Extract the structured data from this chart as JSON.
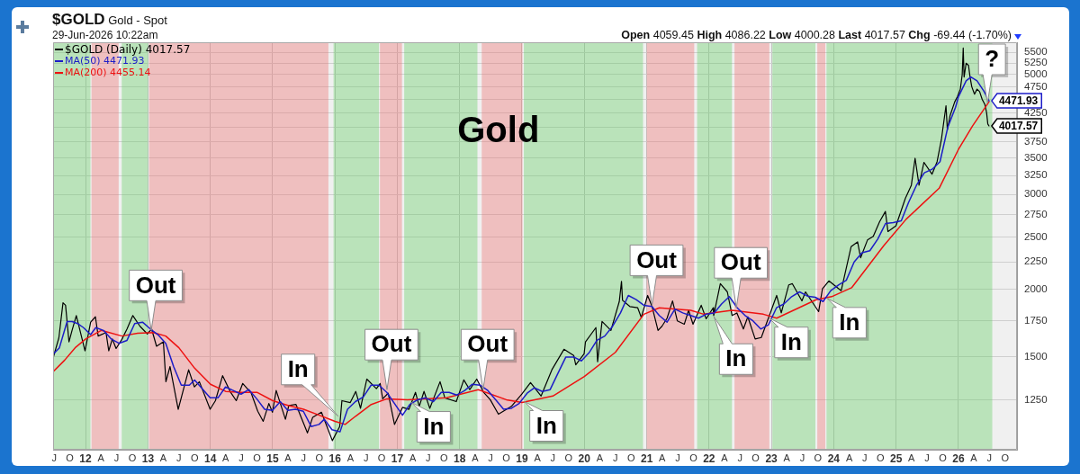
{
  "chart_data": {
    "type": "line",
    "title": "Gold",
    "subtitle": "$GOLD Gold - Spot",
    "annotations": [
      "29-Jun-2026 10:22am",
      "Open 4059.45 High 4086.22 Low 4000.28 Last 4017.57 Chg -69.44 (-1.70%)",
      {
        "text": "Out",
        "x": "2013-01-20",
        "y": 1680
      },
      {
        "text": "In",
        "x": "2016-01-20",
        "y": 1165
      },
      {
        "text": "Out",
        "x": "2016-11-01",
        "y": 1305
      },
      {
        "text": "In",
        "x": "2017-03-25",
        "y": 1235
      },
      {
        "text": "Out",
        "x": "2018-05-18",
        "y": 1305
      },
      {
        "text": "In",
        "x": "2019-01-15",
        "y": 1240
      },
      {
        "text": "Out",
        "x": "2021-02-01",
        "y": 1870
      },
      {
        "text": "In",
        "x": "2022-01-30",
        "y": 1780
      },
      {
        "text": "Out",
        "x": "2022-06-10",
        "y": 1850
      },
      {
        "text": "In",
        "x": "2022-12-20",
        "y": 1770
      },
      {
        "text": "In",
        "x": "2023-11-25",
        "y": 1925
      },
      {
        "text": "?",
        "x": "2026-06-20",
        "y": 4430
      }
    ],
    "xlim": [
      "2011-06-25",
      "2026-12-10"
    ],
    "xticks": [
      {
        "value": "2011-07-01",
        "label": "J"
      },
      {
        "value": "2011-10-01",
        "label": "O"
      },
      {
        "value": "2012-01-01",
        "label": "12"
      },
      {
        "value": "2012-04-01",
        "label": "A"
      },
      {
        "value": "2012-07-01",
        "label": "J"
      },
      {
        "value": "2012-10-01",
        "label": "O"
      },
      {
        "value": "2013-01-01",
        "label": "13"
      },
      {
        "value": "2013-04-01",
        "label": "A"
      },
      {
        "value": "2013-07-01",
        "label": "J"
      },
      {
        "value": "2013-10-01",
        "label": "O"
      },
      {
        "value": "2014-01-01",
        "label": "14"
      },
      {
        "value": "2014-04-01",
        "label": "A"
      },
      {
        "value": "2014-07-01",
        "label": "J"
      },
      {
        "value": "2014-10-01",
        "label": "O"
      },
      {
        "value": "2015-01-01",
        "label": "15"
      },
      {
        "value": "2015-04-01",
        "label": "A"
      },
      {
        "value": "2015-07-01",
        "label": "J"
      },
      {
        "value": "2015-10-01",
        "label": "O"
      },
      {
        "value": "2016-01-01",
        "label": "16"
      },
      {
        "value": "2016-04-01",
        "label": "A"
      },
      {
        "value": "2016-07-01",
        "label": "J"
      },
      {
        "value": "2016-10-01",
        "label": "O"
      },
      {
        "value": "2017-01-01",
        "label": "17"
      },
      {
        "value": "2017-04-01",
        "label": "A"
      },
      {
        "value": "2017-07-01",
        "label": "J"
      },
      {
        "value": "2017-10-01",
        "label": "O"
      },
      {
        "value": "2018-01-01",
        "label": "18"
      },
      {
        "value": "2018-04-01",
        "label": "A"
      },
      {
        "value": "2018-07-01",
        "label": "J"
      },
      {
        "value": "2018-10-01",
        "label": "O"
      },
      {
        "value": "2019-01-01",
        "label": "19"
      },
      {
        "value": "2019-04-01",
        "label": "A"
      },
      {
        "value": "2019-07-01",
        "label": "J"
      },
      {
        "value": "2019-10-01",
        "label": "O"
      },
      {
        "value": "2020-01-01",
        "label": "20"
      },
      {
        "value": "2020-04-01",
        "label": "A"
      },
      {
        "value": "2020-07-01",
        "label": "J"
      },
      {
        "value": "2020-10-01",
        "label": "O"
      },
      {
        "value": "2021-01-01",
        "label": "21"
      },
      {
        "value": "2021-04-01",
        "label": "A"
      },
      {
        "value": "2021-07-01",
        "label": "J"
      },
      {
        "value": "2021-10-01",
        "label": "O"
      },
      {
        "value": "2022-01-01",
        "label": "22"
      },
      {
        "value": "2022-04-01",
        "label": "A"
      },
      {
        "value": "2022-07-01",
        "label": "J"
      },
      {
        "value": "2022-10-01",
        "label": "O"
      },
      {
        "value": "2023-01-01",
        "label": "23"
      },
      {
        "value": "2023-04-01",
        "label": "A"
      },
      {
        "value": "2023-07-01",
        "label": "J"
      },
      {
        "value": "2023-10-01",
        "label": "O"
      },
      {
        "value": "2024-01-01",
        "label": "24"
      },
      {
        "value": "2024-04-01",
        "label": "A"
      },
      {
        "value": "2024-07-01",
        "label": "J"
      },
      {
        "value": "2024-10-01",
        "label": "O"
      },
      {
        "value": "2025-01-01",
        "label": "25"
      },
      {
        "value": "2025-04-01",
        "label": "A"
      },
      {
        "value": "2025-07-01",
        "label": "J"
      },
      {
        "value": "2025-10-01",
        "label": "O"
      },
      {
        "value": "2026-01-01",
        "label": "26"
      },
      {
        "value": "2026-04-01",
        "label": "A"
      },
      {
        "value": "2026-07-01",
        "label": "J"
      },
      {
        "value": "2026-10-01",
        "label": "O"
      }
    ],
    "ylim": [
      1010,
      5740
    ],
    "yticks": [
      1250,
      1500,
      1750,
      2000,
      2250,
      2500,
      2750,
      3000,
      3250,
      3500,
      3750,
      {
        "value": 4000,
        "label": null
      },
      4250,
      {
        "value": 4500,
        "label": null
      },
      4750,
      5000,
      5250,
      5500
    ],
    "log": true,
    "grid": true,
    "legend": "top left",
    "bands": [
      {
        "axis": "x",
        "from": "2011-06-25",
        "to": "2012-01-30",
        "color": "#5ccc5c"
      },
      {
        "axis": "x",
        "from": "2012-02-05",
        "to": "2012-07-13",
        "color": "#ee6a6a"
      },
      {
        "axis": "x",
        "from": "2012-07-31",
        "to": "2013-01-01",
        "color": "#5ccc5c"
      },
      {
        "axis": "x",
        "from": "2013-01-08",
        "to": "2015-11-24",
        "color": "#ee6a6a"
      },
      {
        "axis": "x",
        "from": "2015-12-24",
        "to": "2016-09-15",
        "color": "#5ccc5c"
      },
      {
        "axis": "x",
        "from": "2016-09-21",
        "to": "2017-01-28",
        "color": "#ee6a6a"
      },
      {
        "axis": "x",
        "from": "2017-02-10",
        "to": "2018-04-15",
        "color": "#5ccc5c"
      },
      {
        "axis": "x",
        "from": "2018-05-10",
        "to": "2019-01-04",
        "color": "#ee6a6a"
      },
      {
        "axis": "x",
        "from": "2019-01-12",
        "to": "2020-12-10",
        "color": "#5ccc5c"
      },
      {
        "axis": "x",
        "from": "2021-01-01",
        "to": "2021-10-06",
        "color": "#ee6a6a"
      },
      {
        "axis": "x",
        "from": "2021-10-23",
        "to": "2022-05-15",
        "color": "#5ccc5c"
      },
      {
        "axis": "x",
        "from": "2022-05-30",
        "to": "2022-12-20",
        "color": "#ee6a6a"
      },
      {
        "axis": "x",
        "from": "2023-01-07",
        "to": "2023-09-16",
        "color": "#5ccc5c"
      },
      {
        "axis": "x",
        "from": "2023-09-27",
        "to": "2023-11-13",
        "color": "#ee6a6a"
      },
      {
        "axis": "x",
        "from": "2023-11-20",
        "to": "2026-07-18",
        "color": "#5ccc5c"
      }
    ],
    "series": [
      {
        "name": "$GOLD (Daily) 4017.57",
        "color": "#000000",
        "x": [
          "2011-06-27",
          "2011-07-29",
          "2011-08-22",
          "2011-09-06",
          "2011-09-26",
          "2011-10-14",
          "2011-11-08",
          "2011-12-29",
          "2012-01-31",
          "2012-02-28",
          "2012-03-15",
          "2012-04-30",
          "2012-05-16",
          "2012-06-06",
          "2012-06-28",
          "2012-07-31",
          "2012-08-31",
          "2012-10-04",
          "2012-11-15",
          "2012-12-28",
          "2013-01-22",
          "2013-02-20",
          "2013-04-01",
          "2013-04-16",
          "2013-05-10",
          "2013-06-27",
          "2013-08-27",
          "2013-09-30",
          "2013-10-29",
          "2013-12-31",
          "2014-01-31",
          "2014-03-14",
          "2014-04-30",
          "2014-06-02",
          "2014-07-10",
          "2014-08-29",
          "2014-10-06",
          "2014-11-07",
          "2014-12-10",
          "2014-12-31",
          "2015-01-22",
          "2015-03-17",
          "2015-04-06",
          "2015-05-18",
          "2015-07-24",
          "2015-08-24",
          "2015-10-14",
          "2015-12-17",
          "2016-01-29",
          "2016-02-11",
          "2016-03-31",
          "2016-05-02",
          "2016-05-30",
          "2016-07-06",
          "2016-08-31",
          "2016-09-22",
          "2016-10-07",
          "2016-11-08",
          "2016-12-15",
          "2017-01-31",
          "2017-03-10",
          "2017-04-17",
          "2017-05-09",
          "2017-06-06",
          "2017-07-10",
          "2017-09-08",
          "2017-10-06",
          "2017-12-12",
          "2018-01-25",
          "2018-03-01",
          "2018-04-11",
          "2018-05-21",
          "2018-06-29",
          "2018-08-16",
          "2018-10-31",
          "2018-12-31",
          "2019-02-20",
          "2019-04-23",
          "2019-06-25",
          "2019-09-04",
          "2019-10-31",
          "2019-11-12",
          "2019-12-31",
          "2020-01-08",
          "2020-03-09",
          "2020-03-19",
          "2020-04-14",
          "2020-06-05",
          "2020-07-24",
          "2020-08-06",
          "2020-08-12",
          "2020-09-24",
          "2020-11-09",
          "2020-11-30",
          "2021-01-06",
          "2021-02-01",
          "2021-03-08",
          "2021-03-31",
          "2021-04-30",
          "2021-06-01",
          "2021-06-29",
          "2021-08-09",
          "2021-09-03",
          "2021-09-29",
          "2021-11-16",
          "2021-12-15",
          "2022-01-25",
          "2022-01-28",
          "2022-03-08",
          "2022-04-18",
          "2022-05-16",
          "2022-06-13",
          "2022-07-21",
          "2022-08-16",
          "2022-09-28",
          "2022-11-03",
          "2022-12-30",
          "2023-02-01",
          "2023-02-28",
          "2023-04-13",
          "2023-05-04",
          "2023-06-29",
          "2023-07-20",
          "2023-10-05",
          "2023-10-27",
          "2023-12-04",
          "2024-02-14",
          "2024-04-12",
          "2024-05-20",
          "2024-06-07",
          "2024-07-17",
          "2024-08-20",
          "2024-09-26",
          "2024-10-30",
          "2024-11-14",
          "2024-12-31",
          "2025-02-24",
          "2025-03-31",
          "2025-04-22",
          "2025-05-15",
          "2025-06-13",
          "2025-07-30",
          "2025-08-29",
          "2025-09-23",
          "2025-10-20",
          "2025-10-28",
          "2025-11-13",
          "2025-12-10",
          "2025-12-26",
          "2026-01-12",
          "2026-01-23",
          "2026-01-29",
          "2026-02-03",
          "2026-02-15",
          "2026-03-01",
          "2026-03-10",
          "2026-03-20",
          "2026-04-05",
          "2026-04-20",
          "2026-05-05",
          "2026-05-20",
          "2026-06-05",
          "2026-06-15",
          "2026-06-22",
          "2026-06-29"
        ],
        "values": [
          1500,
          1628,
          1890,
          1870,
          1600,
          1680,
          1790,
          1540,
          1740,
          1780,
          1640,
          1665,
          1540,
          1620,
          1555,
          1615,
          1690,
          1790,
          1710,
          1655,
          1690,
          1570,
          1600,
          1350,
          1440,
          1200,
          1420,
          1320,
          1350,
          1200,
          1245,
          1385,
          1290,
          1245,
          1340,
          1285,
          1190,
          1140,
          1230,
          1185,
          1300,
          1150,
          1220,
          1225,
          1085,
          1160,
          1185,
          1050,
          1115,
          1245,
          1235,
          1295,
          1205,
          1365,
          1310,
          1340,
          1255,
          1285,
          1125,
          1210,
          1200,
          1290,
          1215,
          1295,
          1205,
          1350,
          1260,
          1240,
          1360,
          1305,
          1365,
          1290,
          1250,
          1175,
          1215,
          1280,
          1345,
          1270,
          1420,
          1550,
          1510,
          1450,
          1520,
          1600,
          1700,
          1470,
          1745,
          1680,
          1900,
          2070,
          1910,
          1860,
          1850,
          1775,
          1950,
          1860,
          1680,
          1710,
          1770,
          1905,
          1750,
          1725,
          1830,
          1725,
          1870,
          1765,
          1850,
          1790,
          2050,
          1980,
          1790,
          1810,
          1690,
          1780,
          1620,
          1630,
          1825,
          1950,
          1810,
          2040,
          2050,
          1905,
          1980,
          1820,
          2005,
          2075,
          1990,
          2400,
          2450,
          2290,
          2470,
          2510,
          2670,
          2790,
          2560,
          2625,
          2950,
          3120,
          3500,
          3120,
          3440,
          3270,
          3450,
          3790,
          4380,
          3950,
          4200,
          4450,
          4550,
          4700,
          5000,
          5600,
          4950,
          5250,
          5200,
          4950,
          4750,
          4600,
          4700,
          4650,
          4500,
          4400,
          4250,
          4050,
          4017.57
        ],
        "value_labels": [
          null,
          null,
          null,
          null,
          null,
          null,
          null,
          null,
          null,
          null,
          null,
          null,
          null,
          null,
          null,
          null,
          null,
          null,
          null,
          null,
          null,
          null,
          null,
          null,
          null,
          null,
          null,
          null,
          null,
          null,
          null,
          null,
          null,
          null,
          null,
          null,
          null,
          null,
          null,
          null,
          null,
          null,
          null,
          null,
          null,
          null,
          null,
          null,
          null,
          null,
          null,
          null,
          null,
          null,
          null,
          null,
          null,
          null,
          null,
          null,
          null,
          null,
          null,
          null,
          null,
          null,
          null,
          null,
          null,
          null,
          null,
          null,
          null,
          null,
          null,
          null,
          null,
          null,
          null,
          null,
          null,
          null,
          null,
          null,
          null,
          null,
          null,
          null,
          null,
          null,
          null,
          null,
          null,
          null,
          null,
          null,
          null,
          null,
          null,
          null,
          null,
          null,
          null,
          null,
          null,
          null,
          null,
          null,
          null,
          null,
          null,
          null,
          null,
          null,
          null,
          null,
          null,
          null,
          null,
          null,
          null,
          null,
          null,
          null,
          null,
          null,
          null,
          null,
          null,
          null,
          null,
          null,
          null,
          null,
          null,
          null,
          null,
          null,
          null,
          null,
          null,
          null,
          null,
          null,
          null,
          null,
          null,
          null,
          null,
          null,
          null,
          null,
          null,
          null,
          null,
          null,
          null,
          null,
          null,
          null,
          null,
          null,
          null,
          null,
          "4017.57"
        ]
      },
      {
        "name": "MA(50) 4471.93",
        "color": "#1c1cc8",
        "x": [
          "2011-06-27",
          "2011-08-01",
          "2011-09-15",
          "2011-10-15",
          "2011-11-15",
          "2011-12-20",
          "2012-01-31",
          "2012-03-01",
          "2012-04-15",
          "2012-05-30",
          "2012-07-15",
          "2012-08-31",
          "2012-10-15",
          "2012-11-30",
          "2013-01-15",
          "2013-02-28",
          "2013-04-15",
          "2013-05-31",
          "2013-07-15",
          "2013-08-31",
          "2013-10-01",
          "2013-11-15",
          "2013-12-31",
          "2014-02-15",
          "2014-03-31",
          "2014-05-15",
          "2014-06-30",
          "2014-08-15",
          "2014-09-30",
          "2014-11-15",
          "2014-12-31",
          "2015-02-15",
          "2015-03-31",
          "2015-05-15",
          "2015-06-30",
          "2015-08-15",
          "2015-09-30",
          "2015-10-31",
          "2015-12-15",
          "2016-01-31",
          "2016-03-15",
          "2016-04-30",
          "2016-06-15",
          "2016-07-31",
          "2016-09-15",
          "2016-10-31",
          "2016-12-15",
          "2017-01-31",
          "2017-03-15",
          "2017-04-30",
          "2017-06-15",
          "2017-07-31",
          "2017-09-15",
          "2017-10-31",
          "2017-12-15",
          "2018-01-31",
          "2018-03-15",
          "2018-04-30",
          "2018-06-15",
          "2018-07-31",
          "2018-09-15",
          "2018-10-31",
          "2018-12-15",
          "2019-01-31",
          "2019-03-15",
          "2019-04-30",
          "2019-06-15",
          "2019-07-31",
          "2019-09-15",
          "2019-10-31",
          "2019-12-15",
          "2020-01-31",
          "2020-03-15",
          "2020-04-30",
          "2020-06-15",
          "2020-07-31",
          "2020-09-15",
          "2020-10-31",
          "2020-12-15",
          "2021-01-31",
          "2021-03-15",
          "2021-04-30",
          "2021-06-15",
          "2021-07-31",
          "2021-09-15",
          "2021-10-31",
          "2021-12-15",
          "2022-01-31",
          "2022-03-15",
          "2022-04-30",
          "2022-06-15",
          "2022-07-31",
          "2022-09-15",
          "2022-10-31",
          "2022-12-15",
          "2023-01-31",
          "2023-03-15",
          "2023-04-30",
          "2023-06-15",
          "2023-07-31",
          "2023-09-15",
          "2023-10-31",
          "2023-12-15",
          "2024-01-31",
          "2024-03-15",
          "2024-04-30",
          "2024-06-15",
          "2024-07-31",
          "2024-09-15",
          "2024-10-31",
          "2024-12-15",
          "2025-01-31",
          "2025-03-15",
          "2025-04-30",
          "2025-06-15",
          "2025-07-31",
          "2025-09-15",
          "2025-10-31",
          "2025-12-15",
          "2026-01-01",
          "2026-02-15",
          "2026-03-15",
          "2026-04-20",
          "2026-05-30",
          "2026-06-29"
        ],
        "values": [
          1520,
          1560,
          1745,
          1745,
          1730,
          1700,
          1650,
          1700,
          1680,
          1620,
          1590,
          1610,
          1730,
          1740,
          1690,
          1650,
          1590,
          1440,
          1330,
          1330,
          1360,
          1310,
          1260,
          1260,
          1320,
          1300,
          1280,
          1305,
          1255,
          1200,
          1195,
          1240,
          1195,
          1200,
          1190,
          1115,
          1125,
          1150,
          1100,
          1090,
          1200,
          1240,
          1265,
          1330,
          1330,
          1290,
          1230,
          1170,
          1225,
          1250,
          1260,
          1240,
          1290,
          1290,
          1275,
          1300,
          1335,
          1330,
          1300,
          1250,
          1200,
          1205,
          1230,
          1285,
          1315,
          1295,
          1305,
          1400,
          1500,
          1500,
          1475,
          1530,
          1610,
          1640,
          1710,
          1810,
          1950,
          1915,
          1870,
          1860,
          1790,
          1740,
          1840,
          1810,
          1790,
          1770,
          1800,
          1810,
          1880,
          1940,
          1850,
          1790,
          1750,
          1690,
          1720,
          1850,
          1880,
          1940,
          1980,
          1945,
          1935,
          1900,
          1990,
          2040,
          2080,
          2250,
          2340,
          2360,
          2480,
          2650,
          2660,
          2680,
          2900,
          3120,
          3290,
          3340,
          3450,
          4000,
          4350,
          4550,
          4870,
          4950,
          4870,
          4660,
          4471.93
        ],
        "value_labels": [
          null,
          null,
          null,
          null,
          null,
          null,
          null,
          null,
          null,
          null,
          null,
          null,
          null,
          null,
          null,
          null,
          null,
          null,
          null,
          null,
          null,
          null,
          null,
          null,
          null,
          null,
          null,
          null,
          null,
          null,
          null,
          null,
          null,
          null,
          null,
          null,
          null,
          null,
          null,
          null,
          null,
          null,
          null,
          null,
          null,
          null,
          null,
          null,
          null,
          null,
          null,
          null,
          null,
          null,
          null,
          null,
          null,
          null,
          null,
          null,
          null,
          null,
          null,
          null,
          null,
          null,
          null,
          null,
          null,
          null,
          null,
          null,
          null,
          null,
          null,
          null,
          null,
          null,
          null,
          null,
          null,
          null,
          null,
          null,
          null,
          null,
          null,
          null,
          null,
          null,
          null,
          null,
          null,
          null,
          null,
          null,
          null,
          null,
          null,
          null,
          null,
          null,
          null,
          null,
          null,
          null,
          null,
          null,
          null,
          null,
          null,
          null,
          null,
          null,
          null,
          null,
          null,
          null,
          null,
          null,
          null,
          null,
          null,
          null,
          "4471.93"
        ]
      },
      {
        "name": "MA(200) 4455.14",
        "color": "#ee1111",
        "x": [
          "2011-06-27",
          "2011-09-01",
          "2011-11-01",
          "2012-01-02",
          "2012-04-02",
          "2012-08-01",
          "2012-11-01",
          "2013-02-01",
          "2013-04-15",
          "2013-07-01",
          "2013-10-01",
          "2014-01-02",
          "2014-04-01",
          "2014-07-01",
          "2014-10-01",
          "2015-01-02",
          "2015-04-01",
          "2015-07-01",
          "2015-10-01",
          "2016-01-02",
          "2016-03-01",
          "2016-05-01",
          "2016-08-01",
          "2016-11-01",
          "2017-03-01",
          "2017-10-15",
          "2018-04-20",
          "2018-10-01",
          "2019-01-01",
          "2019-07-01",
          "2020-01-01",
          "2020-07-01",
          "2020-12-15",
          "2021-03-15",
          "2021-09-15",
          "2021-12-01",
          "2022-05-15",
          "2022-11-15",
          "2023-02-01",
          "2023-09-20",
          "2023-12-20",
          "2024-04-15",
          "2024-10-20",
          "2025-03-01",
          "2025-09-10",
          "2025-12-31",
          "2026-03-25",
          "2026-06-05",
          "2026-06-29"
        ],
        "values": [
          1410,
          1480,
          1560,
          1620,
          1680,
          1640,
          1660,
          1665,
          1640,
          1560,
          1430,
          1335,
          1295,
          1290,
          1290,
          1245,
          1220,
          1200,
          1170,
          1140,
          1125,
          1165,
          1225,
          1255,
          1250,
          1260,
          1305,
          1250,
          1235,
          1270,
          1380,
          1530,
          1800,
          1850,
          1830,
          1800,
          1830,
          1800,
          1770,
          1915,
          1940,
          2015,
          2410,
          2700,
          3080,
          3630,
          4020,
          4340,
          4455.14
        ]
      }
    ]
  }
}
